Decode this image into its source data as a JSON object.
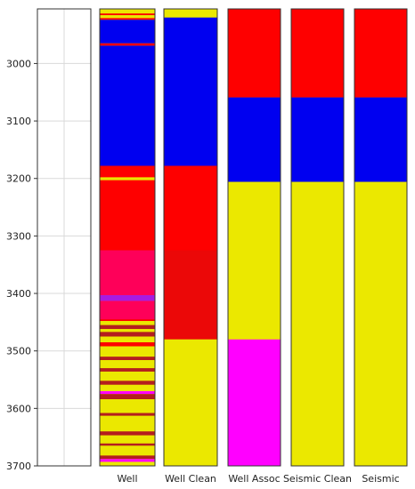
{
  "chart_data": {
    "type": "heatmap",
    "title": "",
    "xlabel": "",
    "ylabel": "",
    "ylim": [
      2905,
      3700
    ],
    "y_inverted": true,
    "grid": true,
    "yticks": [
      3000,
      3100,
      3200,
      3300,
      3400,
      3500,
      3600,
      3700
    ],
    "colors": {
      "yellow": "#ebe800",
      "red": "#fe0000",
      "blue": "#0000f0",
      "magenta": "#ff00ff",
      "dark_red": "#b41e1e",
      "purple": "#7a2ad0"
    },
    "tracks": [
      {
        "label": "",
        "base": null,
        "intervals": [],
        "overlays": []
      },
      {
        "label": "Well",
        "base": "yellow",
        "intervals": [
          {
            "top": 2905,
            "bottom": 2913,
            "color": "yellow"
          },
          {
            "top": 2913,
            "bottom": 2916,
            "color": "red"
          },
          {
            "top": 2916,
            "bottom": 2921,
            "color": "yellow"
          },
          {
            "top": 2921,
            "bottom": 2924,
            "color": "red"
          },
          {
            "top": 2924,
            "bottom": 2965,
            "color": "blue"
          },
          {
            "top": 2965,
            "bottom": 2969,
            "color": "red"
          },
          {
            "top": 2969,
            "bottom": 3178,
            "color": "blue"
          },
          {
            "top": 3178,
            "bottom": 3198,
            "color": "red"
          },
          {
            "top": 3198,
            "bottom": 3203,
            "color": "yellow"
          },
          {
            "top": 3203,
            "bottom": 3403,
            "color": "red"
          },
          {
            "top": 3403,
            "bottom": 3413,
            "color": "purple"
          },
          {
            "top": 3413,
            "bottom": 3448,
            "color": "red"
          },
          {
            "top": 3448,
            "bottom": 3455,
            "color": "yellow"
          },
          {
            "top": 3455,
            "bottom": 3462,
            "color": "dark_red"
          },
          {
            "top": 3462,
            "bottom": 3467,
            "color": "yellow"
          },
          {
            "top": 3467,
            "bottom": 3475,
            "color": "dark_red"
          },
          {
            "top": 3475,
            "bottom": 3485,
            "color": "yellow"
          },
          {
            "top": 3485,
            "bottom": 3492,
            "color": "red"
          },
          {
            "top": 3492,
            "bottom": 3510,
            "color": "yellow"
          },
          {
            "top": 3510,
            "bottom": 3516,
            "color": "dark_red"
          },
          {
            "top": 3516,
            "bottom": 3530,
            "color": "yellow"
          },
          {
            "top": 3530,
            "bottom": 3536,
            "color": "dark_red"
          },
          {
            "top": 3536,
            "bottom": 3552,
            "color": "yellow"
          },
          {
            "top": 3552,
            "bottom": 3559,
            "color": "dark_red"
          },
          {
            "top": 3559,
            "bottom": 3570,
            "color": "yellow"
          },
          {
            "top": 3570,
            "bottom": 3575,
            "color": "magenta"
          },
          {
            "top": 3575,
            "bottom": 3584,
            "color": "dark_red"
          },
          {
            "top": 3584,
            "bottom": 3608,
            "color": "yellow"
          },
          {
            "top": 3608,
            "bottom": 3613,
            "color": "dark_red"
          },
          {
            "top": 3613,
            "bottom": 3640,
            "color": "yellow"
          },
          {
            "top": 3640,
            "bottom": 3647,
            "color": "dark_red"
          },
          {
            "top": 3647,
            "bottom": 3661,
            "color": "yellow"
          },
          {
            "top": 3661,
            "bottom": 3665,
            "color": "dark_red"
          },
          {
            "top": 3665,
            "bottom": 3682,
            "color": "yellow"
          },
          {
            "top": 3682,
            "bottom": 3688,
            "color": "dark_red"
          },
          {
            "top": 3688,
            "bottom": 3693,
            "color": "magenta"
          },
          {
            "top": 3693,
            "bottom": 3700,
            "color": "yellow"
          }
        ],
        "overlays": [
          {
            "top": 3325,
            "bottom": 3445,
            "color": "magenta",
            "opacity": 0.35
          }
        ]
      },
      {
        "label": "Well Clean",
        "base": "yellow",
        "intervals": [
          {
            "top": 2905,
            "bottom": 2920,
            "color": "yellow"
          },
          {
            "top": 2920,
            "bottom": 3178,
            "color": "blue"
          },
          {
            "top": 3178,
            "bottom": 3480,
            "color": "red"
          },
          {
            "top": 3480,
            "bottom": 3700,
            "color": "yellow"
          }
        ],
        "overlays": [
          {
            "top": 3325,
            "bottom": 3480,
            "color": "dark_red",
            "opacity": 0.25
          }
        ]
      },
      {
        "label": "Well Assoc",
        "base": "yellow",
        "intervals": [
          {
            "top": 2905,
            "bottom": 3059,
            "color": "red"
          },
          {
            "top": 3059,
            "bottom": 3206,
            "color": "blue"
          },
          {
            "top": 3206,
            "bottom": 3480,
            "color": "yellow"
          },
          {
            "top": 3480,
            "bottom": 3700,
            "color": "magenta"
          }
        ],
        "overlays": []
      },
      {
        "label": "Seismic Clean",
        "base": "yellow",
        "intervals": [
          {
            "top": 2905,
            "bottom": 3059,
            "color": "red"
          },
          {
            "top": 3059,
            "bottom": 3206,
            "color": "blue"
          },
          {
            "top": 3206,
            "bottom": 3700,
            "color": "yellow"
          }
        ],
        "overlays": []
      },
      {
        "label": "Seismic",
        "base": "yellow",
        "intervals": [
          {
            "top": 2905,
            "bottom": 3059,
            "color": "red"
          },
          {
            "top": 3059,
            "bottom": 3206,
            "color": "blue"
          },
          {
            "top": 3206,
            "bottom": 3700,
            "color": "yellow"
          }
        ],
        "overlays": []
      }
    ]
  }
}
